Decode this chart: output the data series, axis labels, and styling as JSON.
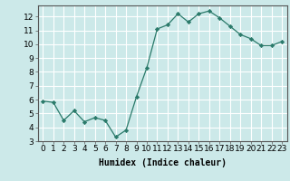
{
  "x": [
    0,
    1,
    2,
    3,
    4,
    5,
    6,
    7,
    8,
    9,
    10,
    11,
    12,
    13,
    14,
    15,
    16,
    17,
    18,
    19,
    20,
    21,
    22,
    23
  ],
  "y": [
    5.9,
    5.8,
    4.5,
    5.2,
    4.4,
    4.7,
    4.5,
    3.3,
    3.8,
    6.2,
    8.3,
    11.1,
    11.4,
    12.2,
    11.6,
    12.2,
    12.4,
    11.9,
    11.3,
    10.7,
    10.4,
    9.9,
    9.9,
    10.2
  ],
  "line_color": "#2a7a6a",
  "marker": "D",
  "marker_size": 2.2,
  "bg_color": "#cce9e9",
  "grid_color": "#ffffff",
  "xlabel": "Humidex (Indice chaleur)",
  "xlim": [
    -0.5,
    23.5
  ],
  "ylim": [
    3,
    12.8
  ],
  "yticks": [
    3,
    4,
    5,
    6,
    7,
    8,
    9,
    10,
    11,
    12
  ],
  "xticks": [
    0,
    1,
    2,
    3,
    4,
    5,
    6,
    7,
    8,
    9,
    10,
    11,
    12,
    13,
    14,
    15,
    16,
    17,
    18,
    19,
    20,
    21,
    22,
    23
  ],
  "label_fontsize": 7,
  "tick_fontsize": 6.5
}
